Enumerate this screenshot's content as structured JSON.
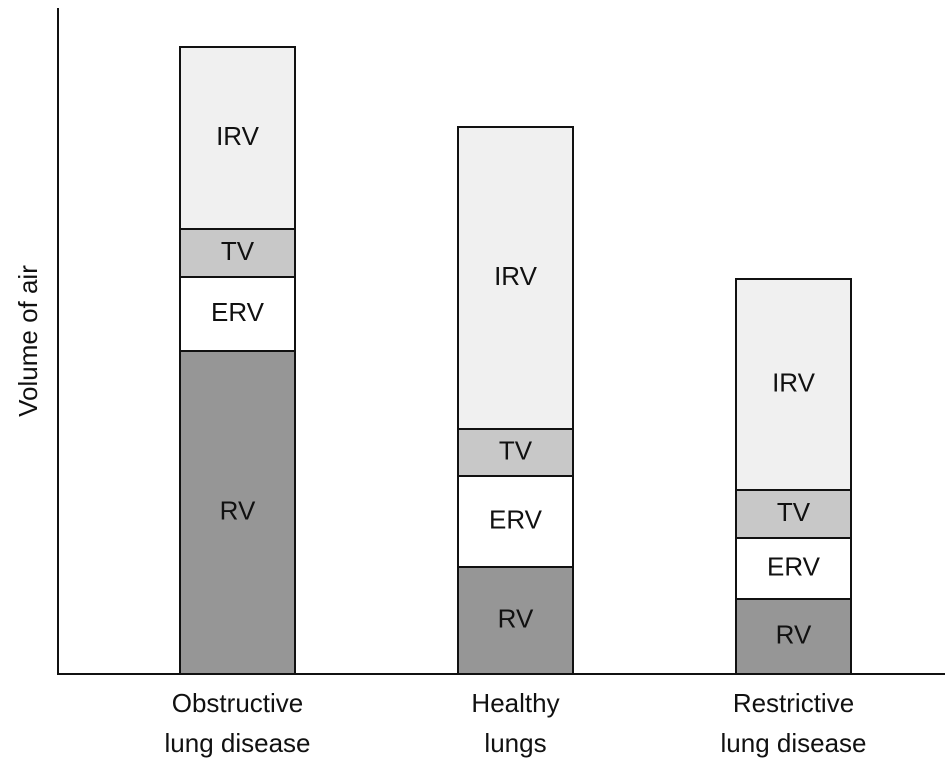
{
  "chart_data": {
    "type": "stacked_bar",
    "y_label": "Volume of air",
    "categories": [
      [
        "Obstructive",
        "lung disease"
      ],
      [
        "Healthy",
        "lungs"
      ],
      [
        "Restrictive",
        "lung disease"
      ]
    ],
    "series": [
      {
        "name": "RV",
        "color": "#969696",
        "values": [
          323,
          107,
          75
        ]
      },
      {
        "name": "ERV",
        "color": "#ffffff",
        "values": [
          74,
          91,
          61
        ]
      },
      {
        "name": "TV",
        "color": "#c8c8c8",
        "values": [
          48,
          47,
          48
        ]
      },
      {
        "name": "IRV",
        "color": "#f0f0f0",
        "values": [
          182,
          302,
          211
        ]
      }
    ],
    "ylim": [
      0,
      666
    ]
  }
}
